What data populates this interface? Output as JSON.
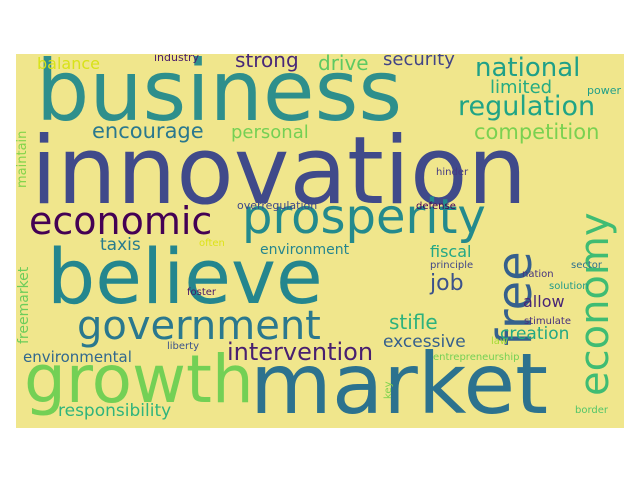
{
  "background_color": "#f0e68c",
  "words": [
    {
      "text": "business",
      "color": "#2e8f8c"
    },
    {
      "text": "innovation",
      "color": "#404a8a"
    },
    {
      "text": "believe",
      "color": "#24868e"
    },
    {
      "text": "market",
      "color": "#2c728e"
    },
    {
      "text": "growth",
      "color": "#73d055"
    },
    {
      "text": "economic",
      "color": "#440154"
    },
    {
      "text": "prosperity",
      "color": "#238a8d"
    },
    {
      "text": "government",
      "color": "#2a788e"
    },
    {
      "text": "economy",
      "color": "#3fbc73"
    },
    {
      "text": "free",
      "color": "#35608d"
    },
    {
      "text": "intervention",
      "color": "#481f70"
    },
    {
      "text": "regulation",
      "color": "#20a486"
    },
    {
      "text": "national",
      "color": "#1fa088"
    },
    {
      "text": "competition",
      "color": "#7ad151"
    },
    {
      "text": "encourage",
      "color": "#2a788e"
    },
    {
      "text": "personal",
      "color": "#75d054"
    },
    {
      "text": "strong",
      "color": "#482878"
    },
    {
      "text": "drive",
      "color": "#5ec962"
    },
    {
      "text": "security",
      "color": "#414487"
    },
    {
      "text": "limited",
      "color": "#25ab82"
    },
    {
      "text": "balance",
      "color": "#d8e219"
    },
    {
      "text": "industry",
      "color": "#481a6c"
    },
    {
      "text": "power",
      "color": "#1f9e89"
    },
    {
      "text": "maintain",
      "color": "#84d44b"
    },
    {
      "text": "taxis",
      "color": "#287c8e"
    },
    {
      "text": "environment",
      "color": "#25858e"
    },
    {
      "text": "fiscal",
      "color": "#22a785"
    },
    {
      "text": "job",
      "color": "#3b528b"
    },
    {
      "text": "allow",
      "color": "#482576"
    },
    {
      "text": "creation",
      "color": "#22a884"
    },
    {
      "text": "stifle",
      "color": "#2db27d"
    },
    {
      "text": "excessive",
      "color": "#355f8d"
    },
    {
      "text": "environmental",
      "color": "#31688e"
    },
    {
      "text": "responsibility",
      "color": "#2fb47c"
    },
    {
      "text": "freemarket",
      "color": "#6ccd5a"
    },
    {
      "text": "hinder",
      "color": "#443983"
    },
    {
      "text": "defense",
      "color": "#440154"
    },
    {
      "text": "overregulation",
      "color": "#3e4989"
    },
    {
      "text": "often",
      "color": "#dde318"
    },
    {
      "text": "principle",
      "color": "#404688"
    },
    {
      "text": "nation",
      "color": "#46337e"
    },
    {
      "text": "sector",
      "color": "#2d708e"
    },
    {
      "text": "solution",
      "color": "#1f9a8a"
    },
    {
      "text": "stimulate",
      "color": "#472f7d"
    },
    {
      "text": "law",
      "color": "#a5db36"
    },
    {
      "text": "foster",
      "color": "#481668"
    },
    {
      "text": "liberty",
      "color": "#3b528b"
    },
    {
      "text": "entrepreneurship",
      "color": "#74d055"
    },
    {
      "text": "key",
      "color": "#7fd34e"
    },
    {
      "text": "border",
      "color": "#52c569"
    }
  ]
}
